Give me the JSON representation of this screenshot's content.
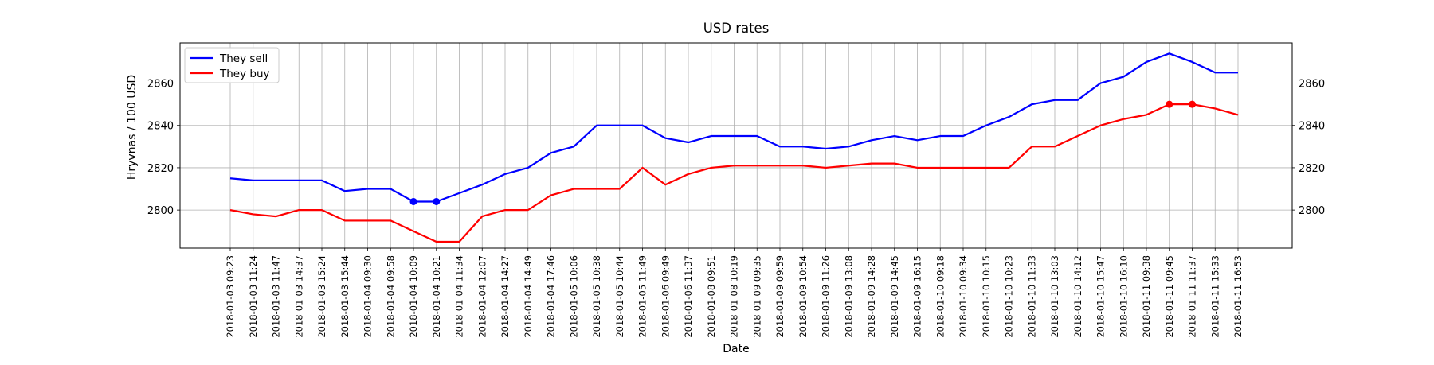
{
  "chart_data": {
    "type": "line",
    "title": "USD rates",
    "xlabel": "Date",
    "ylabel": "Hryvnas / 100 USD",
    "ylim": [
      2782,
      2879
    ],
    "yticks": [
      2800,
      2820,
      2840,
      2860
    ],
    "grid": true,
    "legend_position": "top-left",
    "secondary_y_axis": true,
    "categories": [
      "2018-01-03 09:23",
      "2018-01-03 11:24",
      "2018-01-03 11:47",
      "2018-01-03 14:37",
      "2018-01-03 15:24",
      "2018-01-03 15:44",
      "2018-01-04 09:30",
      "2018-01-04 09:58",
      "2018-01-04 10:09",
      "2018-01-04 10:21",
      "2018-01-04 11:34",
      "2018-01-04 12:07",
      "2018-01-04 14:27",
      "2018-01-04 14:49",
      "2018-01-04 17:46",
      "2018-01-05 10:06",
      "2018-01-05 10:38",
      "2018-01-05 10:44",
      "2018-01-05 11:49",
      "2018-01-06 09:49",
      "2018-01-06 11:37",
      "2018-01-08 09:51",
      "2018-01-08 10:19",
      "2018-01-09 09:35",
      "2018-01-09 09:59",
      "2018-01-09 10:54",
      "2018-01-09 11:26",
      "2018-01-09 13:08",
      "2018-01-09 14:28",
      "2018-01-09 14:45",
      "2018-01-09 16:15",
      "2018-01-10 09:18",
      "2018-01-10 09:34",
      "2018-01-10 10:15",
      "2018-01-10 10:23",
      "2018-01-10 11:33",
      "2018-01-10 13:03",
      "2018-01-10 14:12",
      "2018-01-10 15:47",
      "2018-01-10 16:10",
      "2018-01-11 09:38",
      "2018-01-11 09:45",
      "2018-01-11 11:37",
      "2018-01-11 15:33",
      "2018-01-11 16:53"
    ],
    "series": [
      {
        "name": "They sell",
        "color": "#0000ff",
        "values": [
          2815,
          2814,
          2814,
          2814,
          2814,
          2809,
          2810,
          2810,
          2804,
          2804,
          2808,
          2812,
          2817,
          2820,
          2827,
          2830,
          2840,
          2840,
          2840,
          2834,
          2832,
          2835,
          2835,
          2835,
          2830,
          2830,
          2829,
          2830,
          2833,
          2835,
          2833,
          2835,
          2835,
          2840,
          2844,
          2850,
          2852,
          2852,
          2860,
          2863,
          2870,
          2874,
          2870,
          2865,
          2865
        ],
        "markers": [
          8,
          9
        ]
      },
      {
        "name": "They buy",
        "color": "#ff0000",
        "values": [
          2800,
          2798,
          2797,
          2800,
          2800,
          2795,
          2795,
          2795,
          2790,
          2785,
          2785,
          2797,
          2800,
          2800,
          2807,
          2810,
          2810,
          2810,
          2820,
          2812,
          2817,
          2820,
          2821,
          2821,
          2821,
          2821,
          2820,
          2821,
          2822,
          2822,
          2820,
          2820,
          2820,
          2820,
          2820,
          2830,
          2830,
          2835,
          2840,
          2843,
          2845,
          2850,
          2850,
          2848,
          2845
        ],
        "markers": [
          41,
          42
        ]
      }
    ]
  }
}
